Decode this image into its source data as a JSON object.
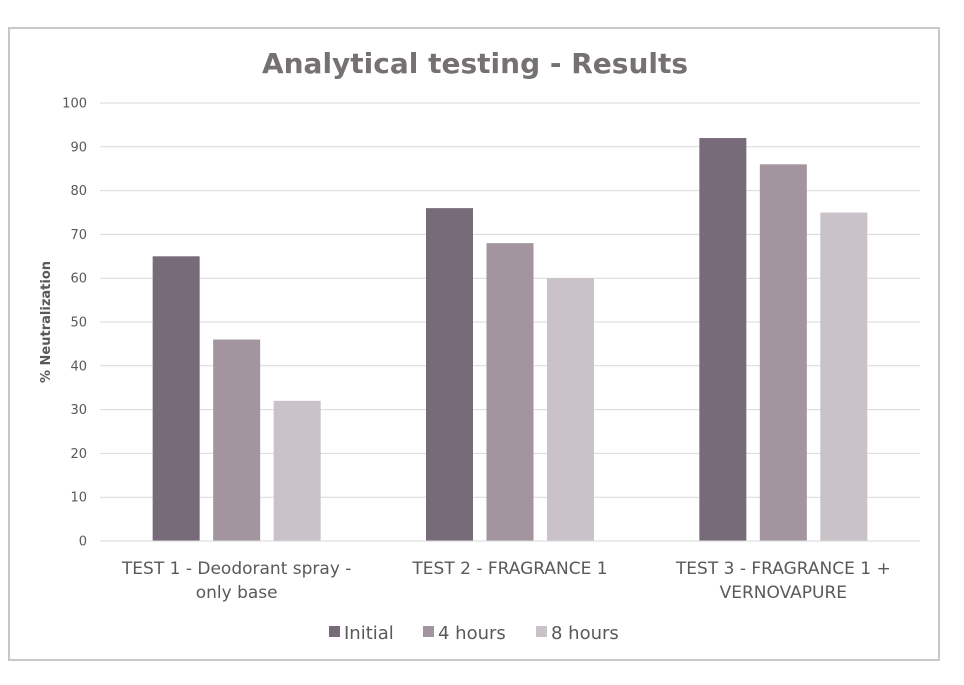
{
  "chart_data": {
    "type": "bar",
    "title": "Analytical testing - Results",
    "xlabel": "",
    "ylabel": "% Neutralization",
    "ylim": [
      0,
      100
    ],
    "yticks": [
      "0",
      "10",
      "20",
      "30",
      "40",
      "50",
      "60",
      "70",
      "80",
      "90",
      "100"
    ],
    "categories": [
      [
        "TEST 1 - Deodorant spray -",
        "only base"
      ],
      [
        "TEST 2 - FRAGRANCE 1"
      ],
      [
        "TEST 3 - FRAGRANCE 1 +",
        "VERNOVAPURE"
      ]
    ],
    "series": [
      {
        "name": "Initial",
        "color": "#786b79",
        "values": [
          65,
          76,
          92
        ]
      },
      {
        "name": "4 hours",
        "color": "#a2959f",
        "values": [
          46,
          68,
          86
        ]
      },
      {
        "name": "8 hours",
        "color": "#c9c2c8",
        "values": [
          32,
          60,
          75
        ]
      }
    ],
    "grid": true,
    "legend": "bottom"
  }
}
